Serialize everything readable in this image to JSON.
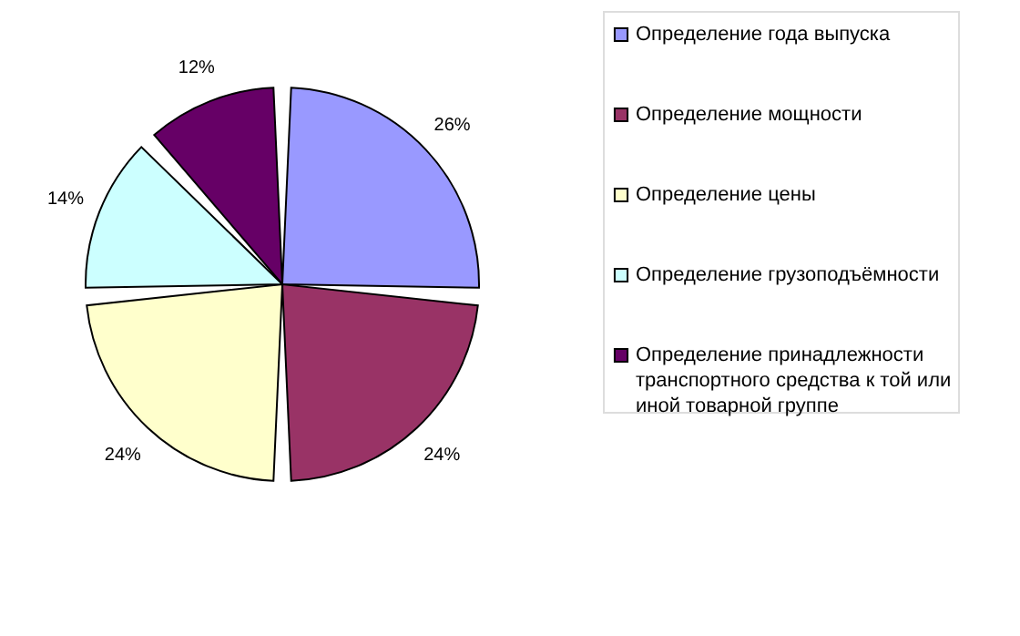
{
  "chart_data": {
    "type": "pie",
    "categories": [
      "Определение года выпуска",
      "Определение мощности",
      "Определение цены",
      "Определение грузоподъёмности",
      "Определение принадлежности транспортного средства к той или иной товарной группе"
    ],
    "values": [
      26,
      24,
      24,
      14,
      12
    ],
    "colors": [
      "#9999ff",
      "#993366",
      "#ffffcc",
      "#ccffff",
      "#660066"
    ],
    "value_labels": [
      "26%",
      "24%",
      "24%",
      "14%",
      "12%"
    ],
    "legend": "right"
  }
}
